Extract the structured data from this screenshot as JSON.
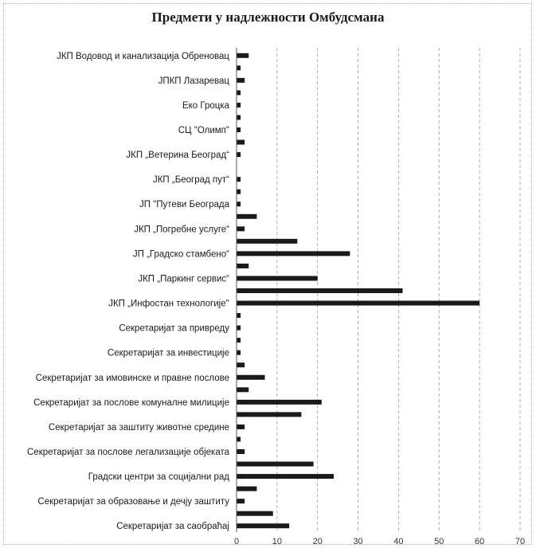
{
  "chart_data": {
    "type": "bar",
    "orientation": "horizontal",
    "title": "Предмети у надлежности Омбудсмана",
    "xlabel": "",
    "ylabel": "",
    "xlim": [
      0,
      70
    ],
    "x_ticks": [
      0,
      10,
      20,
      30,
      40,
      50,
      60,
      70
    ],
    "grid": "vertical dashed",
    "bar_color": "#1a1a1a",
    "categories": [
      "ЈКП Водовод и канализација Обреновац",
      "",
      "ЈПКП Лазаревац",
      "",
      "Еко Гроцка",
      "",
      "СЦ \"Олимп\"",
      "",
      "ЈКП „Ветерина Београд“",
      "",
      "ЈКП „Београд пут“",
      "",
      "ЈП \"Путеви Београда",
      "",
      "ЈКП „Погребне услуге“",
      "",
      "ЈП „Градско стамбено“",
      "",
      "ЈКП „Паркинг сервис“",
      "",
      "ЈКП „Инфостан технологије''",
      "",
      "Секретаријат за привреду",
      "",
      "Секретаријат за инвестиције",
      "",
      "Секретаријат за имовинске и правне послове",
      "",
      "Секретаријат за послове комуналне милиције",
      "",
      "Секретаријат за заштиту животне средине",
      "",
      "Секретаријат за послове легализације објеката",
      "",
      "Градски центри за социјални рад",
      "",
      "Секретаријат за образовање и дечју заштиту",
      "",
      "Секретаријат за саобраћај"
    ],
    "values": [
      3,
      1,
      2,
      1,
      1,
      1,
      1,
      2,
      1,
      0,
      1,
      1,
      1,
      5,
      2,
      15,
      28,
      3,
      20,
      41,
      60,
      1,
      1,
      1,
      1,
      2,
      7,
      3,
      21,
      16,
      2,
      1,
      2,
      19,
      24,
      5,
      2,
      9,
      13
    ]
  }
}
